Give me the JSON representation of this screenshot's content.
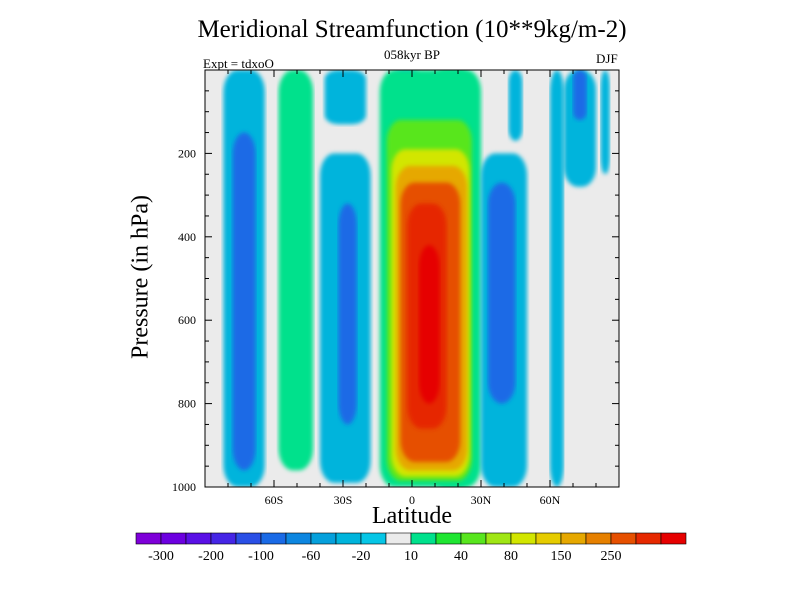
{
  "chart_data": {
    "type": "contour",
    "title": "Meridional Streamfunction (10**9kg/m-2)",
    "subtitle": "058kyr BP",
    "left_label": "Expt = tdxoO",
    "right_label": "DJF",
    "xlabel": "Latitude",
    "ylabel": "Pressure (in hPa)",
    "xlim": [
      -90,
      90
    ],
    "ylim": [
      1000,
      0
    ],
    "y_reversed": true,
    "x_ticks": [
      {
        "value": -60,
        "label": "60S"
      },
      {
        "value": -30,
        "label": "30S"
      },
      {
        "value": 0,
        "label": "0"
      },
      {
        "value": 30,
        "label": "30N"
      },
      {
        "value": 60,
        "label": "60N"
      }
    ],
    "y_ticks": [
      {
        "value": 200,
        "label": "200"
      },
      {
        "value": 400,
        "label": "400"
      },
      {
        "value": 600,
        "label": "600"
      },
      {
        "value": 800,
        "label": "800"
      },
      {
        "value": 1000,
        "label": "1000"
      }
    ],
    "colorbar": {
      "colors": [
        "#7e00d9",
        "#6c00e0",
        "#5a10e6",
        "#4525e6",
        "#2a4fe6",
        "#1a6ae6",
        "#0d86e0",
        "#05a0dc",
        "#00b4dc",
        "#06c6e6",
        "#ebebeb",
        "#00e18c",
        "#1fe632",
        "#58e61e",
        "#a0e614",
        "#d2e600",
        "#e6cc00",
        "#e6a800",
        "#e68000",
        "#e65000",
        "#e62800",
        "#e60000"
      ],
      "labels": [
        "-300",
        "-200",
        "-100",
        "-60",
        "-20",
        "10",
        "40",
        "80",
        "150",
        "250"
      ]
    },
    "cells": [
      {
        "lat": [
          -82,
          -64
        ],
        "p": [
          0,
          1000
        ],
        "value": -20
      },
      {
        "lat": [
          -78,
          -68
        ],
        "p": [
          150,
          960
        ],
        "value": -60
      },
      {
        "lat": [
          -58,
          -43
        ],
        "p": [
          0,
          960
        ],
        "value": 10
      },
      {
        "lat": [
          -40,
          -18
        ],
        "p": [
          200,
          990
        ],
        "value": -20
      },
      {
        "lat": [
          -32,
          -24
        ],
        "p": [
          320,
          850
        ],
        "value": -60
      },
      {
        "lat": [
          -38,
          -20
        ],
        "p": [
          0,
          130
        ],
        "value": -20
      },
      {
        "lat": [
          -8,
          3
        ],
        "p": [
          0,
          75
        ],
        "value": -20
      },
      {
        "lat": [
          8,
          30
        ],
        "p": [
          0,
          1000
        ],
        "value": 10
      },
      {
        "lat": [
          -14,
          27
        ],
        "p": [
          0,
          1000
        ],
        "value": 10
      },
      {
        "lat": [
          -11,
          26
        ],
        "p": [
          120,
          985
        ],
        "value": 40
      },
      {
        "lat": [
          -9,
          25
        ],
        "p": [
          190,
          975
        ],
        "value": 80
      },
      {
        "lat": [
          -7,
          24
        ],
        "p": [
          230,
          960
        ],
        "value": 150
      },
      {
        "lat": [
          -5,
          21
        ],
        "p": [
          270,
          940
        ],
        "value": 200
      },
      {
        "lat": [
          -2,
          15
        ],
        "p": [
          320,
          860
        ],
        "value": 250
      },
      {
        "lat": [
          3,
          12
        ],
        "p": [
          420,
          800
        ],
        "value": 300
      },
      {
        "lat": [
          30,
          50
        ],
        "p": [
          200,
          1000
        ],
        "value": -20
      },
      {
        "lat": [
          33,
          45
        ],
        "p": [
          270,
          800
        ],
        "value": -60
      },
      {
        "lat": [
          42,
          48
        ],
        "p": [
          0,
          170
        ],
        "value": -20
      },
      {
        "lat": [
          60,
          66
        ],
        "p": [
          0,
          1000
        ],
        "value": -20
      },
      {
        "lat": [
          66,
          80
        ],
        "p": [
          0,
          280
        ],
        "value": -20
      },
      {
        "lat": [
          70,
          76
        ],
        "p": [
          0,
          120
        ],
        "value": -60
      },
      {
        "lat": [
          82,
          86
        ],
        "p": [
          0,
          250
        ],
        "value": -20
      }
    ]
  }
}
